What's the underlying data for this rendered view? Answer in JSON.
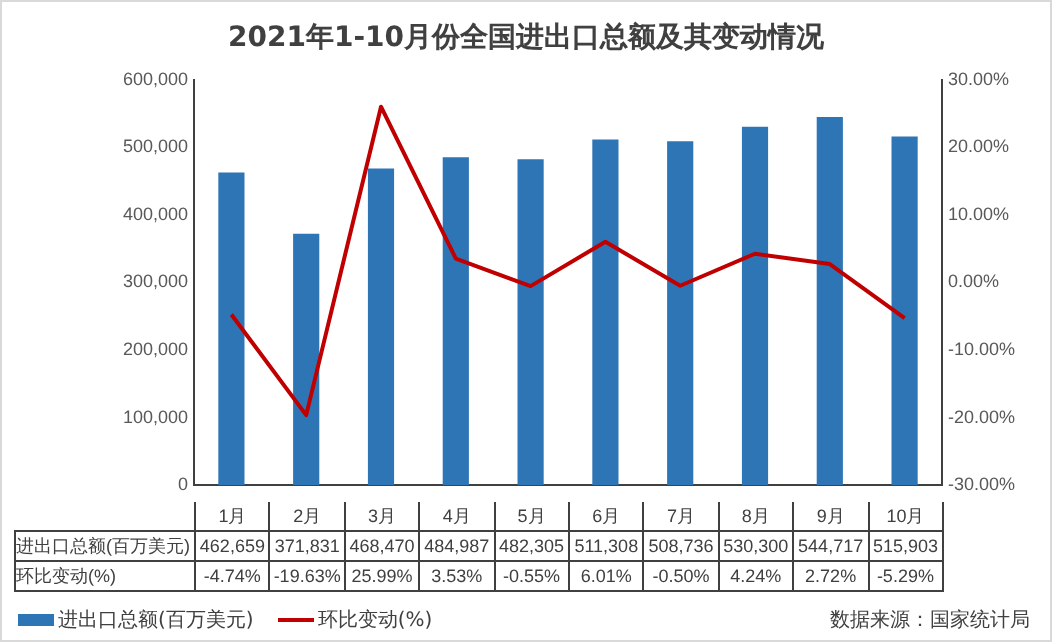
{
  "chart_data": {
    "type": "bar",
    "title": "2021年1-10月份全国进出口总额及其变动情况",
    "categories": [
      "1月",
      "2月",
      "3月",
      "4月",
      "5月",
      "6月",
      "7月",
      "8月",
      "9月",
      "10月"
    ],
    "series": [
      {
        "name": "进出口总额(百万美元)",
        "color": "#2e75b6",
        "values": [
          462659,
          371831,
          468470,
          484987,
          482305,
          511308,
          508736,
          530300,
          544717,
          515903
        ],
        "value_labels": [
          "462,659",
          "371,831",
          "468,470",
          "484,987",
          "482,305",
          "511,308",
          "508,736",
          "530,300",
          "544,717",
          "515,903"
        ]
      },
      {
        "name": "环比变动(%)",
        "type": "line",
        "axis": "y2",
        "color": "#c00000",
        "marker": "none",
        "values": [
          -4.74,
          -19.63,
          25.99,
          3.53,
          -0.55,
          6.01,
          -0.5,
          4.24,
          2.72,
          -5.29
        ],
        "value_labels": [
          "-4.74%",
          "-19.63%",
          "25.99%",
          "3.53%",
          "-0.55%",
          "6.01%",
          "-0.50%",
          "4.24%",
          "2.72%",
          "-5.29%"
        ]
      }
    ],
    "ylim": [
      0,
      600000
    ],
    "yticks": [
      0,
      {
        "value": 100000,
        "label": "100,000"
      },
      {
        "value": 200000,
        "label": "200,000"
      },
      {
        "value": 300000,
        "label": "300,000"
      },
      {
        "value": 400000,
        "label": "400,000"
      },
      {
        "value": 500000,
        "label": "500,000"
      },
      {
        "value": 600000,
        "label": "600,000"
      }
    ],
    "y2lim": [
      -30,
      30
    ],
    "y2ticks": [
      {
        "value": -30,
        "label": "-30.00%"
      },
      {
        "value": -20,
        "label": "-20.00%"
      },
      {
        "value": -10,
        "label": "-10.00%"
      },
      {
        "value": 0,
        "label": "0.00%"
      },
      {
        "value": 10,
        "label": "10.00%"
      },
      {
        "value": 20,
        "label": "20.00%"
      },
      {
        "value": 30,
        "label": "30.00%"
      }
    ],
    "data_labels": true,
    "legend": "bottom",
    "annotations": [
      "数据来源：国家统计局"
    ]
  }
}
